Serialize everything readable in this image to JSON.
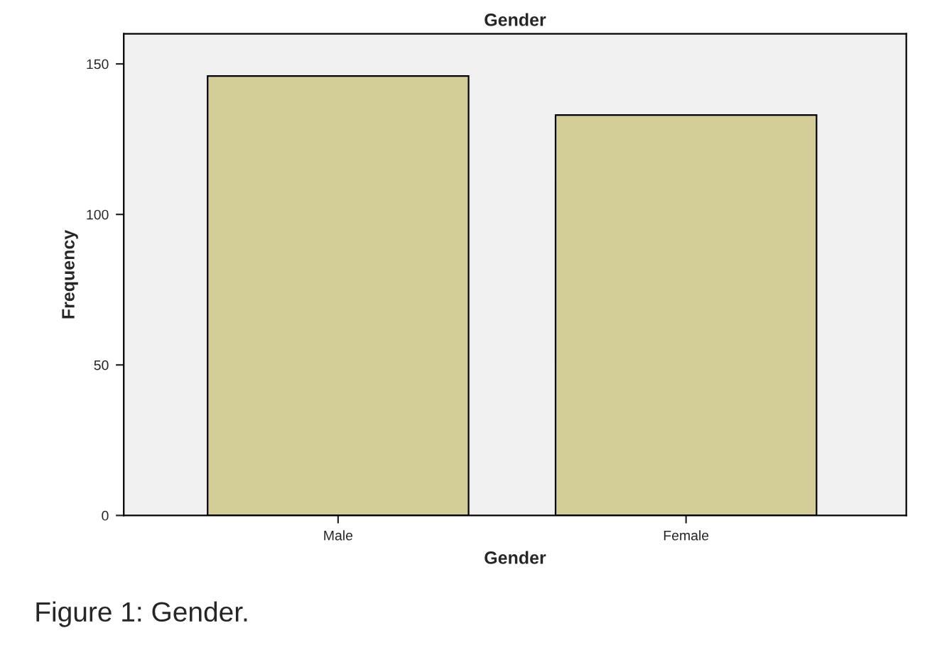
{
  "chart_data": {
    "type": "bar",
    "title": "Gender",
    "xlabel": "Gender",
    "ylabel": "Frequency",
    "categories": [
      "Male",
      "Female"
    ],
    "values": [
      146,
      133
    ],
    "color": "#d3ce98",
    "ylim": [
      0,
      160
    ],
    "yticks": [
      0,
      50,
      100,
      150
    ],
    "grid": false,
    "legend": false,
    "annotations": [
      "Figure 1: Gender."
    ]
  }
}
